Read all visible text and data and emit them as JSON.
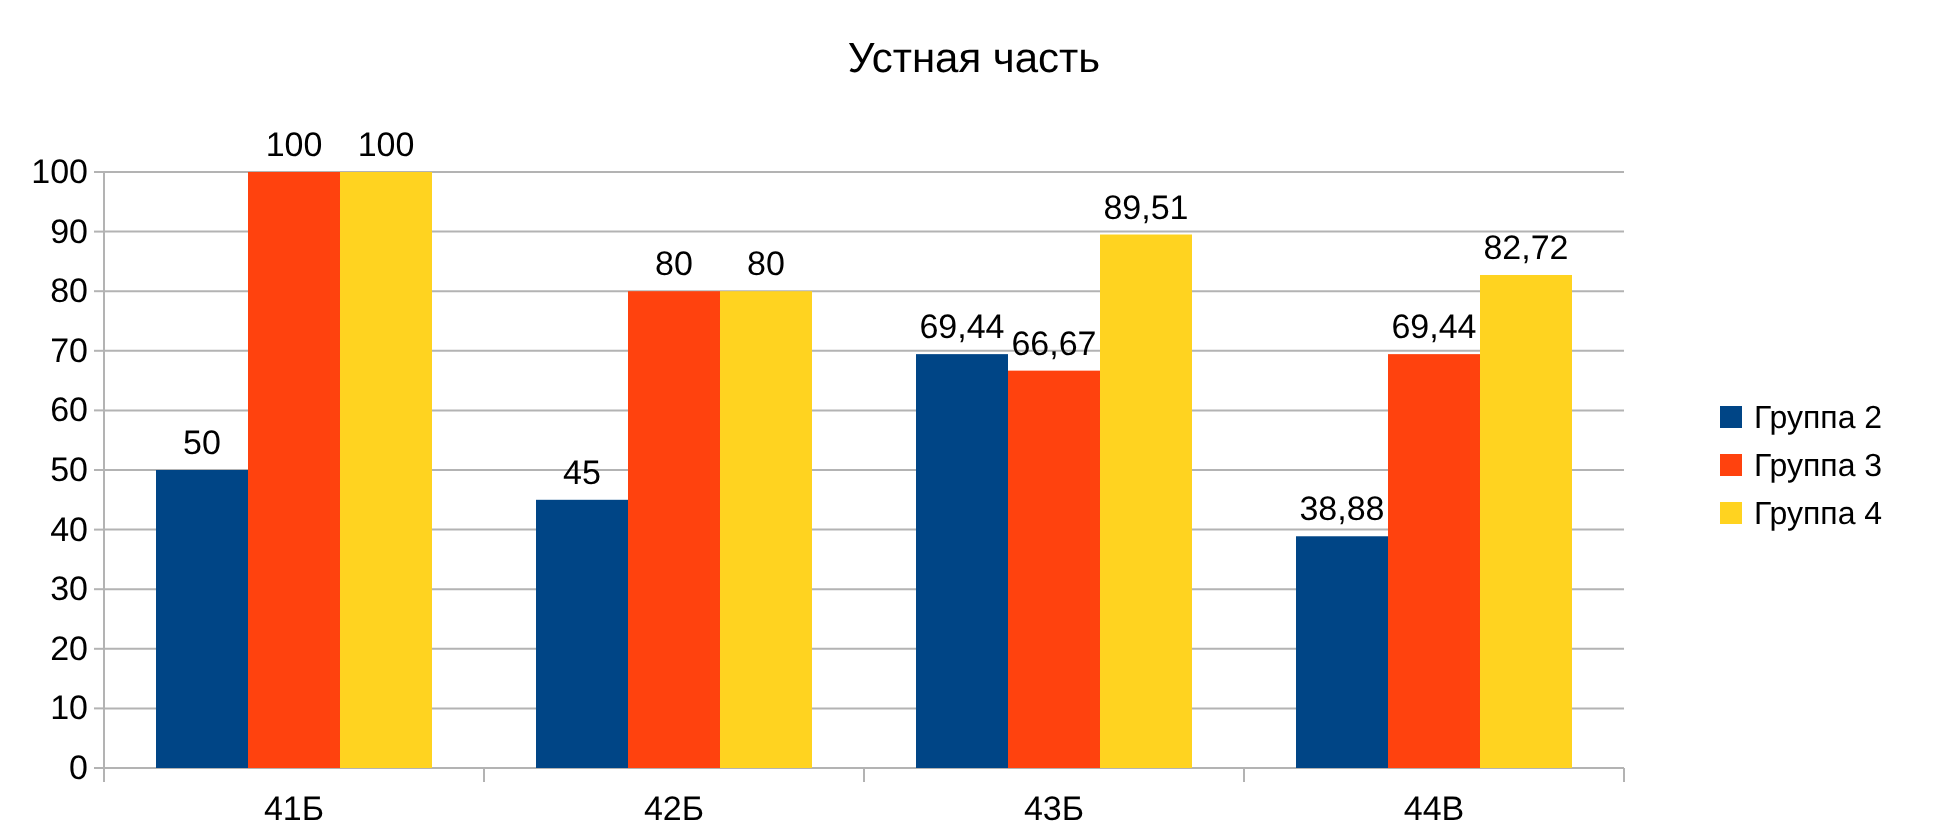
{
  "chart_data": {
    "type": "bar",
    "title": "Устная часть",
    "categories": [
      "41Б",
      "42Б",
      "43Б",
      "44В"
    ],
    "series": [
      {
        "name": "Группа 2",
        "color": "#004586",
        "values": [
          50,
          45,
          69.44,
          38.88
        ],
        "value_labels": [
          "50",
          "45",
          "69,44",
          "38,88"
        ]
      },
      {
        "name": "Группа 3",
        "color": "#ff420e",
        "values": [
          100,
          80,
          66.67,
          69.44
        ],
        "value_labels": [
          "100",
          "80",
          "66,67",
          "69,44"
        ]
      },
      {
        "name": "Группа 4",
        "color": "#ffd320",
        "values": [
          100,
          80,
          89.51,
          82.72
        ],
        "value_labels": [
          "100",
          "80",
          "89,51",
          "82,72"
        ]
      }
    ],
    "ylim": [
      0,
      100
    ],
    "yticks": [
      0,
      10,
      20,
      30,
      40,
      50,
      60,
      70,
      80,
      90,
      100
    ],
    "grid": "y",
    "legend": "right"
  }
}
